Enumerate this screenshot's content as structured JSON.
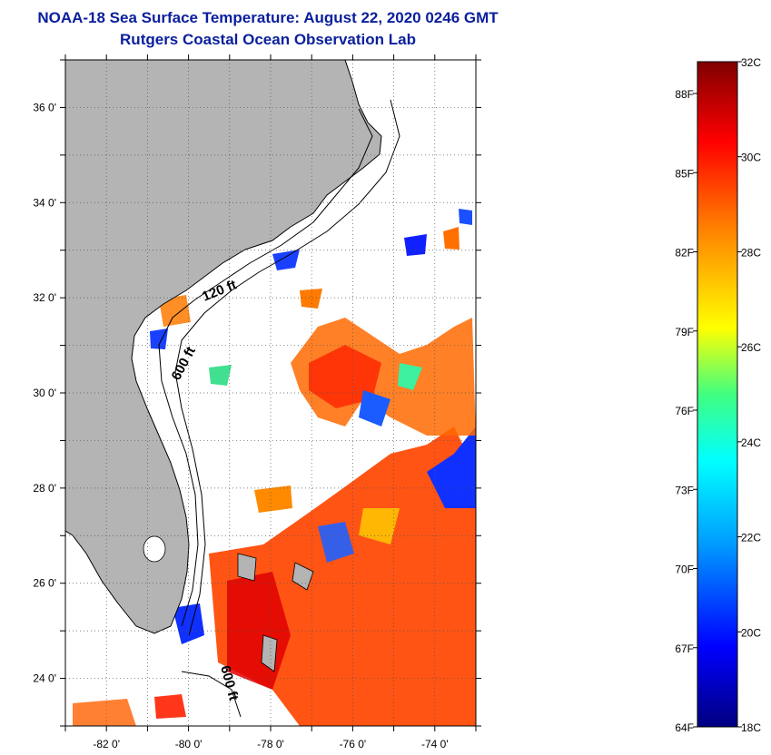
{
  "header": {
    "title": "NOAA-18 Sea Surface Temperature:  August 22, 2020 0246 GMT",
    "subtitle": "Rutgers Coastal Ocean Observation Lab"
  },
  "map": {
    "lon_range": [
      -83,
      -73
    ],
    "lat_range": [
      23,
      37
    ],
    "lat_ticks": [
      {
        "value": 36,
        "label": "36 0'"
      },
      {
        "value": 34,
        "label": "34 0'"
      },
      {
        "value": 32,
        "label": "32 0'"
      },
      {
        "value": 30,
        "label": "30 0'"
      },
      {
        "value": 28,
        "label": "28 0'"
      },
      {
        "value": 26,
        "label": "26 0'"
      },
      {
        "value": 24,
        "label": "24 0'"
      }
    ],
    "lon_ticks": [
      {
        "value": -82,
        "label": "-82 0'"
      },
      {
        "value": -80,
        "label": "-80 0'"
      },
      {
        "value": -78,
        "label": "-78 0'"
      },
      {
        "value": -76,
        "label": "-76 0'"
      },
      {
        "value": -74,
        "label": "-74 0'"
      }
    ],
    "contour_labels": [
      "120 ft",
      "600 ft",
      "600 ft"
    ],
    "colors": {
      "land": "#b4b4b4",
      "ocean_nodata": "#ffffff",
      "grid": "#555555"
    }
  },
  "colorbar": {
    "celsius_labels": [
      "32C",
      "30C",
      "28C",
      "26C",
      "24C",
      "22C",
      "20C",
      "18C"
    ],
    "fahrenheit_labels": [
      "88F",
      "85F",
      "82F",
      "79F",
      "76F",
      "73F",
      "70F",
      "67F",
      "64F"
    ],
    "colors": [
      "#000080",
      "#0000ff",
      "#00a0ff",
      "#00ffff",
      "#40ff80",
      "#ffff00",
      "#ff8000",
      "#ff0000",
      "#800000"
    ]
  }
}
